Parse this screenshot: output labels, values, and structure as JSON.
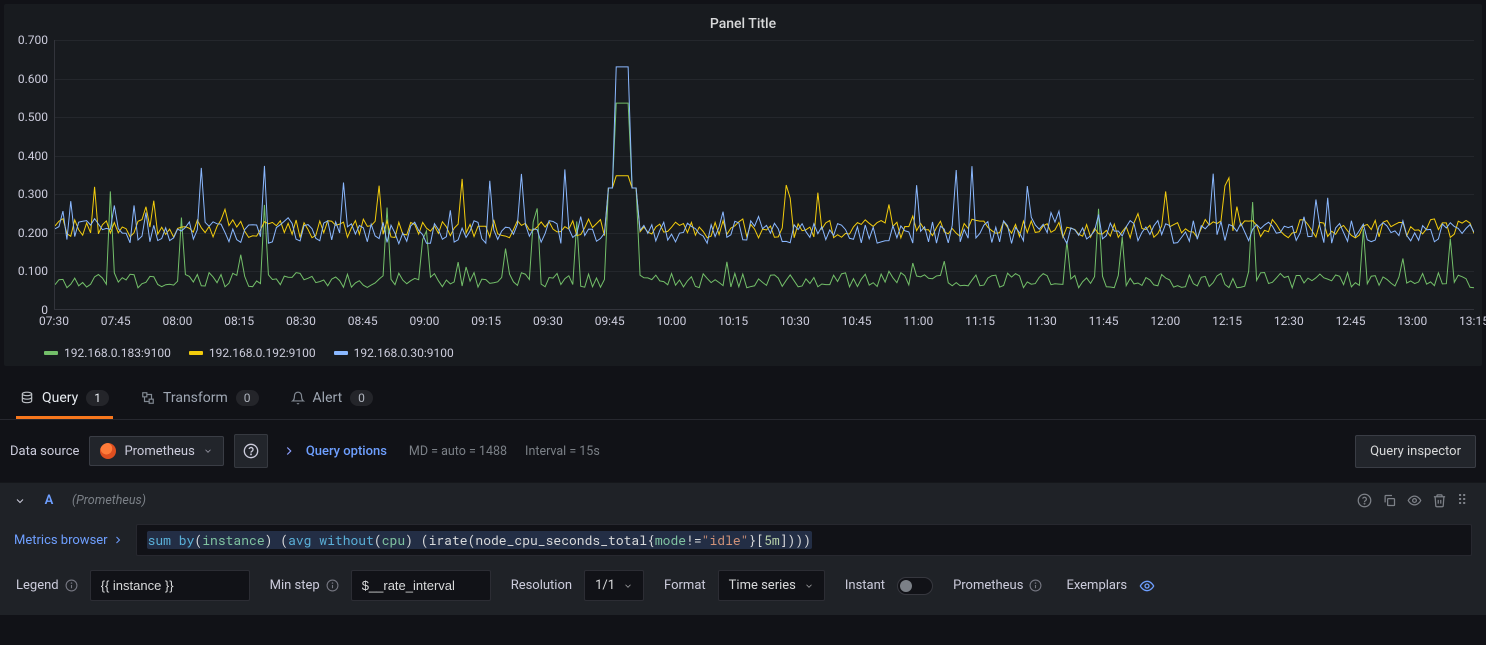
{
  "panel": {
    "title": "Panel Title",
    "background_color": "#181b1f"
  },
  "chart": {
    "type": "line",
    "ylim": [
      0,
      0.7
    ],
    "ytick_step": 0.1,
    "yticks": [
      "0",
      "0.100",
      "0.200",
      "0.300",
      "0.400",
      "0.500",
      "0.600",
      "0.700"
    ],
    "xticks": [
      "07:30",
      "07:45",
      "08:00",
      "08:15",
      "08:30",
      "08:45",
      "09:00",
      "09:15",
      "09:30",
      "09:45",
      "10:00",
      "10:15",
      "10:30",
      "10:45",
      "11:00",
      "11:15",
      "11:30",
      "11:45",
      "12:00",
      "12:15",
      "12:30",
      "12:45",
      "13:00",
      "13:15"
    ],
    "grid_color": "rgba(204,204,220,.07)",
    "axis_color": "rgba(204,204,220,.15)",
    "label_fontsize": 12,
    "line_width": 1,
    "series": [
      {
        "name": "192.168.0.183:9100",
        "color": "#73bf69",
        "baseline": 0.075,
        "noise": 0.02,
        "spike_prob": 0.08,
        "spike_mag": 0.22
      },
      {
        "name": "192.168.0.192:9100",
        "color": "#f2cc0c",
        "baseline": 0.21,
        "noise": 0.025,
        "spike_prob": 0.07,
        "spike_mag": 0.12
      },
      {
        "name": "192.168.0.30:9100",
        "color": "#8ab8ff",
        "baseline": 0.2,
        "noise": 0.03,
        "spike_prob": 0.09,
        "spike_mag": 0.18
      }
    ],
    "big_spike_at": 0.4,
    "big_spike_mag": 0.63
  },
  "tabs": {
    "items": [
      {
        "label": "Query",
        "count": "1",
        "active": true
      },
      {
        "label": "Transform",
        "count": "0",
        "active": false
      },
      {
        "label": "Alert",
        "count": "0",
        "active": false
      }
    ]
  },
  "datasource": {
    "label": "Data source",
    "selected": "Prometheus",
    "query_options_label": "Query options",
    "md_text": "MD = auto = 1488",
    "interval_text": "Interval = 15s",
    "inspector_label": "Query inspector"
  },
  "query": {
    "ref_id": "A",
    "datasource_name": "(Prometheus)",
    "metrics_browser_label": "Metrics browser",
    "promql_tokens": [
      {
        "t": "kw",
        "v": "sum"
      },
      {
        "t": "sp",
        "v": " "
      },
      {
        "t": "kw",
        "v": "by"
      },
      {
        "t": "op",
        "v": "("
      },
      {
        "t": "label",
        "v": "instance"
      },
      {
        "t": "op",
        "v": ")"
      },
      {
        "t": "sp",
        "v": " "
      },
      {
        "t": "op",
        "v": "("
      },
      {
        "t": "kw",
        "v": "avg"
      },
      {
        "t": "sp",
        "v": " "
      },
      {
        "t": "kw",
        "v": "without"
      },
      {
        "t": "op",
        "v": "("
      },
      {
        "t": "label",
        "v": "cpu"
      },
      {
        "t": "op",
        "v": ")"
      },
      {
        "t": "sp",
        "v": " "
      },
      {
        "t": "op",
        "v": "("
      },
      {
        "t": "fn",
        "v": "irate"
      },
      {
        "t": "op",
        "v": "("
      },
      {
        "t": "fn",
        "v": "node_cpu_seconds_total"
      },
      {
        "t": "op",
        "v": "{"
      },
      {
        "t": "label",
        "v": "mode"
      },
      {
        "t": "op",
        "v": "!="
      },
      {
        "t": "str",
        "v": "\"idle\""
      },
      {
        "t": "op",
        "v": "}"
      },
      {
        "t": "op",
        "v": "["
      },
      {
        "t": "dur",
        "v": "5m"
      },
      {
        "t": "op",
        "v": "]"
      },
      {
        "t": "op",
        "v": ")"
      },
      {
        "t": "op",
        "v": ")"
      },
      {
        "t": "op",
        "v": ")"
      }
    ],
    "options": {
      "legend_label": "Legend",
      "legend_value": "{{ instance }}",
      "min_step_label": "Min step",
      "min_step_value": "$__rate_interval",
      "resolution_label": "Resolution",
      "resolution_value": "1/1",
      "format_label": "Format",
      "format_value": "Time series",
      "instant_label": "Instant",
      "instant_on": false,
      "prometheus_label": "Prometheus",
      "exemplars_label": "Exemplars"
    }
  }
}
